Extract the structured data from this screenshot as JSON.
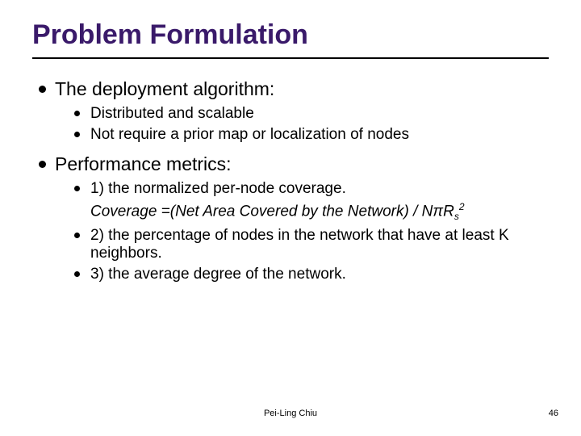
{
  "title": "Problem Formulation",
  "title_color": "#3a1a6a",
  "section1": {
    "heading": "The deployment algorithm:",
    "items": [
      "Distributed and scalable",
      "Not require a prior map or localization of nodes"
    ]
  },
  "section2": {
    "heading": "Performance metrics:",
    "items": [
      "1) the normalized per-node coverage.",
      "2) the percentage of nodes in the network that have at least K neighbors.",
      "3) the average degree of the network."
    ],
    "formula_prefix": "Coverage =(",
    "formula_mid": "Net Area Covered by the Network",
    "formula_suffix1": ") / N",
    "formula_pi": "π",
    "formula_R": "R",
    "formula_sub": "s",
    "formula_sup": "2"
  },
  "footer": {
    "author": "Pei-Ling Chiu",
    "page": "46"
  },
  "fonts": {
    "title_size": 34,
    "l1_size": 23,
    "l2_size": 19,
    "formula_size": 19,
    "footer_size": 11
  },
  "colors": {
    "text": "#000000",
    "title": "#3a1a6a",
    "rule": "#000000",
    "background": "#ffffff"
  }
}
